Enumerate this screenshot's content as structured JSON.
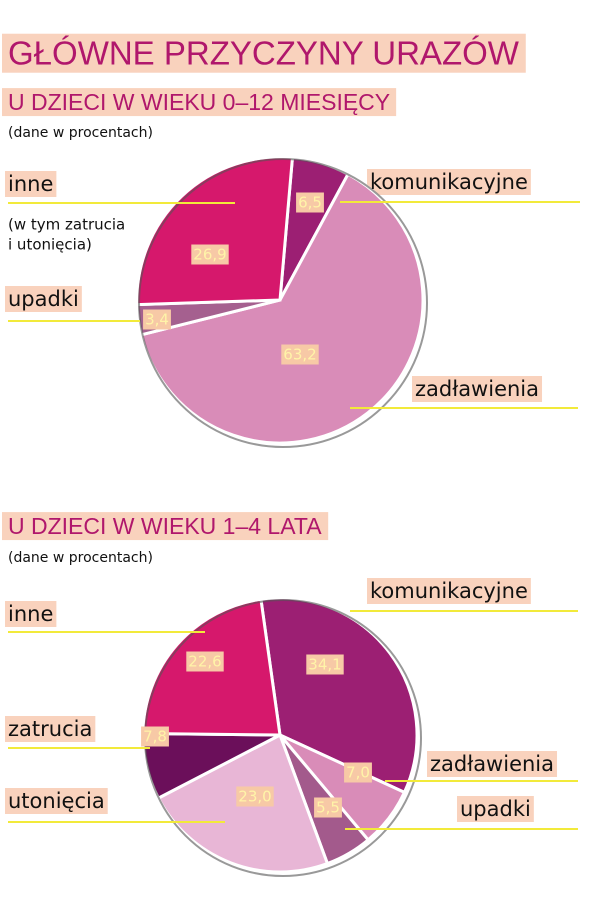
{
  "title": "GŁÓWNE PRZYCZYNY URAZÓW",
  "chart_data": [
    {
      "type": "pie",
      "title": "U DZIECI W WIEKU 0–12 MIESIĘCY",
      "subtitle": "(dane w procentach)",
      "categories": [
        "komunikacyjne",
        "zadławienia",
        "upadki",
        "inne"
      ],
      "values": [
        6.5,
        63.2,
        3.4,
        26.9
      ],
      "value_labels": [
        "6,5",
        "63,2",
        "3,4",
        "26,9"
      ],
      "colors": [
        "#9c1f73",
        "#d98cb8",
        "#a5608f",
        "#d6186c"
      ],
      "annotations": [
        "(w tym zatrucia",
        "i utonięcia)"
      ]
    },
    {
      "type": "pie",
      "title": "U DZIECI W WIEKU 1–4 LATA",
      "subtitle": "(dane w procentach)",
      "categories": [
        "komunikacyjne",
        "zadławienia",
        "upadki",
        "utonięcia",
        "zatrucia",
        "inne"
      ],
      "values": [
        34.1,
        7.0,
        5.5,
        23.0,
        7.8,
        22.6
      ],
      "value_labels": [
        "34,1",
        "7,0",
        "5,5",
        "23,0",
        "7,8",
        "22,6"
      ],
      "colors": [
        "#9c1f73",
        "#d98cb8",
        "#a35a8c",
        "#e8b6d6",
        "#6b0f5a",
        "#d6186c"
      ]
    }
  ]
}
